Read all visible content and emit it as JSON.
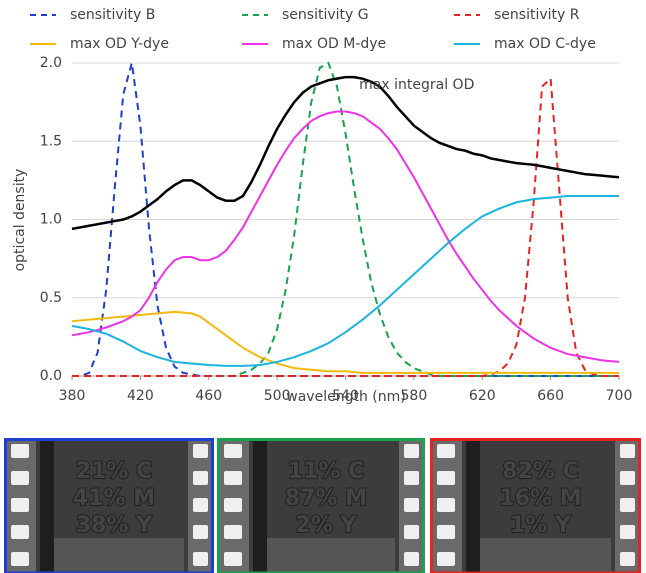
{
  "chart_data": {
    "type": "line",
    "xlabel": "wavelength (nm)",
    "ylabel": "optical density",
    "x": [
      380,
      385,
      390,
      395,
      400,
      405,
      410,
      415,
      420,
      425,
      430,
      435,
      440,
      445,
      450,
      455,
      460,
      465,
      470,
      475,
      480,
      485,
      490,
      495,
      500,
      505,
      510,
      515,
      520,
      525,
      530,
      535,
      540,
      545,
      550,
      555,
      560,
      565,
      570,
      575,
      580,
      585,
      590,
      595,
      600,
      605,
      610,
      615,
      620,
      625,
      630,
      635,
      640,
      645,
      650,
      655,
      660,
      665,
      670,
      675,
      680,
      685,
      690,
      695,
      700
    ],
    "xlim": [
      380,
      700
    ],
    "xticks": [
      380,
      420,
      460,
      500,
      540,
      580,
      620,
      660,
      700
    ],
    "ylim": [
      0,
      2
    ],
    "yticks": [
      {
        "value": 0,
        "label": "0.0"
      },
      0.5,
      {
        "value": 1,
        "label": "1.0"
      },
      1.5,
      {
        "value": 2,
        "label": "2.0"
      }
    ],
    "grid": true,
    "series": [
      {
        "name": "sensitivity B",
        "color": "#1f3fd0",
        "dashed": true,
        "values": [
          0,
          0,
          0.02,
          0.15,
          0.55,
          1.2,
          1.8,
          2.0,
          1.6,
          0.95,
          0.45,
          0.18,
          0.06,
          0.02,
          0.01,
          0,
          0,
          0,
          0,
          0,
          0,
          0,
          0,
          0,
          0,
          0,
          0,
          0,
          0,
          0,
          0,
          0,
          0,
          0,
          0,
          0,
          0,
          0,
          0,
          0,
          0,
          0,
          0,
          0,
          0,
          0,
          0,
          0,
          0,
          0,
          0,
          0,
          0,
          0,
          0,
          0,
          0,
          0,
          0,
          0,
          0,
          0,
          0,
          0,
          0
        ]
      },
      {
        "name": "sensitivity G",
        "color": "#1aa34a",
        "dashed": true,
        "values": [
          0,
          0,
          0,
          0,
          0,
          0,
          0,
          0,
          0,
          0,
          0,
          0,
          0,
          0,
          0,
          0,
          0,
          0,
          0,
          0,
          0.02,
          0.04,
          0.08,
          0.15,
          0.3,
          0.55,
          0.9,
          1.35,
          1.75,
          1.97,
          2.0,
          1.85,
          1.55,
          1.2,
          0.88,
          0.6,
          0.4,
          0.25,
          0.15,
          0.09,
          0.05,
          0.03,
          0.01,
          0,
          0,
          0,
          0,
          0,
          0,
          0,
          0,
          0,
          0,
          0,
          0,
          0,
          0,
          0,
          0,
          0,
          0,
          0,
          0,
          0,
          0
        ]
      },
      {
        "name": "sensitivity R",
        "color": "#e8231f",
        "dashed": true,
        "values": [
          0,
          0,
          0,
          0,
          0,
          0,
          0,
          0,
          0,
          0,
          0,
          0,
          0,
          0,
          0,
          0,
          0,
          0,
          0,
          0,
          0,
          0,
          0,
          0,
          0,
          0,
          0,
          0,
          0,
          0,
          0,
          0,
          0,
          0,
          0,
          0,
          0,
          0,
          0,
          0,
          0,
          0,
          0,
          0,
          0,
          0,
          0,
          0,
          0,
          0.01,
          0.03,
          0.08,
          0.2,
          0.5,
          1.1,
          1.85,
          1.9,
          1.2,
          0.5,
          0.15,
          0.04,
          0.01,
          0,
          0,
          0
        ]
      },
      {
        "name": "max OD Y-dye",
        "color": "#f2b90f",
        "dashed": false,
        "values": [
          0.35,
          0.355,
          0.36,
          0.365,
          0.37,
          0.375,
          0.38,
          0.385,
          0.39,
          0.395,
          0.4,
          0.405,
          0.41,
          0.405,
          0.4,
          0.38,
          0.34,
          0.3,
          0.26,
          0.22,
          0.18,
          0.15,
          0.12,
          0.1,
          0.08,
          0.065,
          0.05,
          0.045,
          0.04,
          0.035,
          0.03,
          0.03,
          0.03,
          0.025,
          0.02,
          0.02,
          0.02,
          0.02,
          0.02,
          0.02,
          0.02,
          0.02,
          0.02,
          0.02,
          0.02,
          0.02,
          0.02,
          0.02,
          0.02,
          0.02,
          0.02,
          0.02,
          0.02,
          0.02,
          0.02,
          0.02,
          0.02,
          0.02,
          0.02,
          0.02,
          0.02,
          0.02,
          0.02,
          0.02,
          0.02
        ]
      },
      {
        "name": "max OD M-dye",
        "color": "#f032e6",
        "dashed": false,
        "values": [
          0.26,
          0.27,
          0.28,
          0.295,
          0.31,
          0.33,
          0.35,
          0.38,
          0.42,
          0.5,
          0.6,
          0.68,
          0.74,
          0.76,
          0.76,
          0.74,
          0.74,
          0.76,
          0.8,
          0.87,
          0.95,
          1.05,
          1.15,
          1.25,
          1.35,
          1.44,
          1.52,
          1.58,
          1.63,
          1.66,
          1.68,
          1.69,
          1.69,
          1.68,
          1.66,
          1.62,
          1.58,
          1.52,
          1.45,
          1.36,
          1.27,
          1.17,
          1.07,
          0.97,
          0.87,
          0.78,
          0.7,
          0.62,
          0.55,
          0.48,
          0.42,
          0.37,
          0.32,
          0.28,
          0.24,
          0.21,
          0.18,
          0.16,
          0.14,
          0.13,
          0.12,
          0.11,
          0.1,
          0.095,
          0.09
        ]
      },
      {
        "name": "max OD C-dye",
        "color": "#1ab4e0",
        "dashed": false,
        "values": [
          0.32,
          0.31,
          0.3,
          0.285,
          0.27,
          0.245,
          0.22,
          0.19,
          0.16,
          0.14,
          0.12,
          0.105,
          0.09,
          0.085,
          0.08,
          0.075,
          0.07,
          0.068,
          0.065,
          0.065,
          0.065,
          0.067,
          0.07,
          0.08,
          0.09,
          0.105,
          0.12,
          0.14,
          0.16,
          0.185,
          0.21,
          0.245,
          0.28,
          0.32,
          0.36,
          0.405,
          0.45,
          0.5,
          0.55,
          0.6,
          0.65,
          0.7,
          0.75,
          0.8,
          0.85,
          0.895,
          0.94,
          0.98,
          1.02,
          1.045,
          1.07,
          1.09,
          1.11,
          1.12,
          1.13,
          1.135,
          1.14,
          1.145,
          1.15,
          1.15,
          1.15,
          1.15,
          1.15,
          1.15,
          1.15
        ]
      },
      {
        "name": "max integral OD",
        "color": "#000000",
        "dashed": false,
        "legend": false,
        "values": [
          0.94,
          0.95,
          0.96,
          0.97,
          0.98,
          0.99,
          1.0,
          1.02,
          1.05,
          1.09,
          1.13,
          1.18,
          1.22,
          1.25,
          1.25,
          1.22,
          1.18,
          1.14,
          1.12,
          1.12,
          1.15,
          1.24,
          1.35,
          1.47,
          1.58,
          1.67,
          1.75,
          1.81,
          1.85,
          1.87,
          1.89,
          1.9,
          1.91,
          1.91,
          1.9,
          1.88,
          1.85,
          1.79,
          1.72,
          1.66,
          1.6,
          1.56,
          1.52,
          1.49,
          1.47,
          1.45,
          1.44,
          1.42,
          1.41,
          1.39,
          1.38,
          1.37,
          1.36,
          1.355,
          1.35,
          1.34,
          1.33,
          1.32,
          1.31,
          1.3,
          1.29,
          1.285,
          1.28,
          1.275,
          1.27
        ]
      }
    ]
  },
  "panels": [
    {
      "border": "#1f3fd0",
      "lines": [
        {
          "text": "21% C",
          "color": "#3ee8f0"
        },
        {
          "text": "41% M",
          "color": "#f24ef0"
        },
        {
          "text": "38% Y",
          "color": "#f2e830"
        }
      ]
    },
    {
      "border": "#1aa34a",
      "lines": [
        {
          "text": "11% C",
          "color": "#3ee8f0"
        },
        {
          "text": "87% M",
          "color": "#f24ef0"
        },
        {
          "text": "2% Y",
          "color": "#f2e830"
        }
      ]
    },
    {
      "border": "#e8231f",
      "lines": [
        {
          "text": "82% C",
          "color": "#3ee8f0"
        },
        {
          "text": "16% M",
          "color": "#f24ef0"
        },
        {
          "text": "1% Y",
          "color": "#f2e830"
        }
      ]
    }
  ]
}
